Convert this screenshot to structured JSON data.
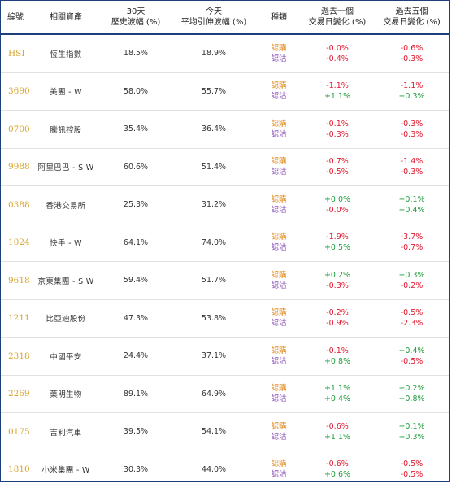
{
  "headers": {
    "code": "編號",
    "asset": "相關資產",
    "hist_vol_line1": "30天",
    "hist_vol_line2": "歷史波幅 (%)",
    "implied_vol_line1": "今天",
    "implied_vol_line2": "平均引伸波幅 (%)",
    "type": "種類",
    "chg1_line1": "過去一個",
    "chg1_line2": "交易日變化 (%)",
    "chg5_line1": "過去五個",
    "chg5_line2": "交易日變化 (%)"
  },
  "type_labels": {
    "call": "認購",
    "put": "認沽"
  },
  "colors": {
    "call": "#e08a1e",
    "put": "#8a4fb8",
    "positive": "#1e9e3a",
    "negative": "#e0182d",
    "code": "#d8a630",
    "border": "#1f3f7a"
  },
  "rows": [
    {
      "code": "HSI",
      "asset": "恆生指數",
      "hist_vol": "18.5%",
      "implied_vol": "18.9%",
      "chg1_call": "-0.0%",
      "chg1_put": "-0.4%",
      "chg5_call": "-0.6%",
      "chg5_put": "-0.3%"
    },
    {
      "code": "3690",
      "asset": "美團 - W",
      "hist_vol": "58.0%",
      "implied_vol": "55.7%",
      "chg1_call": "-1.1%",
      "chg1_put": "+1.1%",
      "chg5_call": "-1.1%",
      "chg5_put": "+0.3%"
    },
    {
      "code": "0700",
      "asset": "騰訊控股",
      "hist_vol": "35.4%",
      "implied_vol": "36.4%",
      "chg1_call": "-0.1%",
      "chg1_put": "-0.3%",
      "chg5_call": "-0.3%",
      "chg5_put": "-0.3%"
    },
    {
      "code": "9988",
      "asset": "阿里巴巴 - S W",
      "hist_vol": "60.6%",
      "implied_vol": "51.4%",
      "chg1_call": "-0.7%",
      "chg1_put": "-0.5%",
      "chg5_call": "-1.4%",
      "chg5_put": "-0.3%"
    },
    {
      "code": "0388",
      "asset": "香港交易所",
      "hist_vol": "25.3%",
      "implied_vol": "31.2%",
      "chg1_call": "+0.0%",
      "chg1_put": "-0.0%",
      "chg5_call": "+0.1%",
      "chg5_put": "+0.4%"
    },
    {
      "code": "1024",
      "asset": "快手 - W",
      "hist_vol": "64.1%",
      "implied_vol": "74.0%",
      "chg1_call": "-1.9%",
      "chg1_put": "+0.5%",
      "chg5_call": "-3.7%",
      "chg5_put": "-0.7%"
    },
    {
      "code": "9618",
      "asset": "京東集團 - S W",
      "hist_vol": "59.4%",
      "implied_vol": "51.7%",
      "chg1_call": "+0.2%",
      "chg1_put": "-0.3%",
      "chg5_call": "+0.3%",
      "chg5_put": "-0.2%"
    },
    {
      "code": "1211",
      "asset": "比亞迪股份",
      "hist_vol": "47.3%",
      "implied_vol": "53.8%",
      "chg1_call": "-0.2%",
      "chg1_put": "-0.9%",
      "chg5_call": "-0.5%",
      "chg5_put": "-2.3%"
    },
    {
      "code": "2318",
      "asset": "中國平安",
      "hist_vol": "24.4%",
      "implied_vol": "37.1%",
      "chg1_call": "-0.1%",
      "chg1_put": "+0.8%",
      "chg5_call": "+0.4%",
      "chg5_put": "-0.5%"
    },
    {
      "code": "2269",
      "asset": "藥明生物",
      "hist_vol": "89.1%",
      "implied_vol": "64.9%",
      "chg1_call": "+1.1%",
      "chg1_put": "+0.4%",
      "chg5_call": "+0.2%",
      "chg5_put": "+0.8%"
    },
    {
      "code": "0175",
      "asset": "吉利汽車",
      "hist_vol": "39.5%",
      "implied_vol": "54.1%",
      "chg1_call": "-0.6%",
      "chg1_put": "+1.1%",
      "chg5_call": "+0.1%",
      "chg5_put": "+0.3%"
    },
    {
      "code": "1810",
      "asset": "小米集團 - W",
      "hist_vol": "30.3%",
      "implied_vol": "44.0%",
      "chg1_call": "-0.6%",
      "chg1_put": "+0.6%",
      "chg5_call": "-0.5%",
      "chg5_put": "-0.5%"
    }
  ]
}
